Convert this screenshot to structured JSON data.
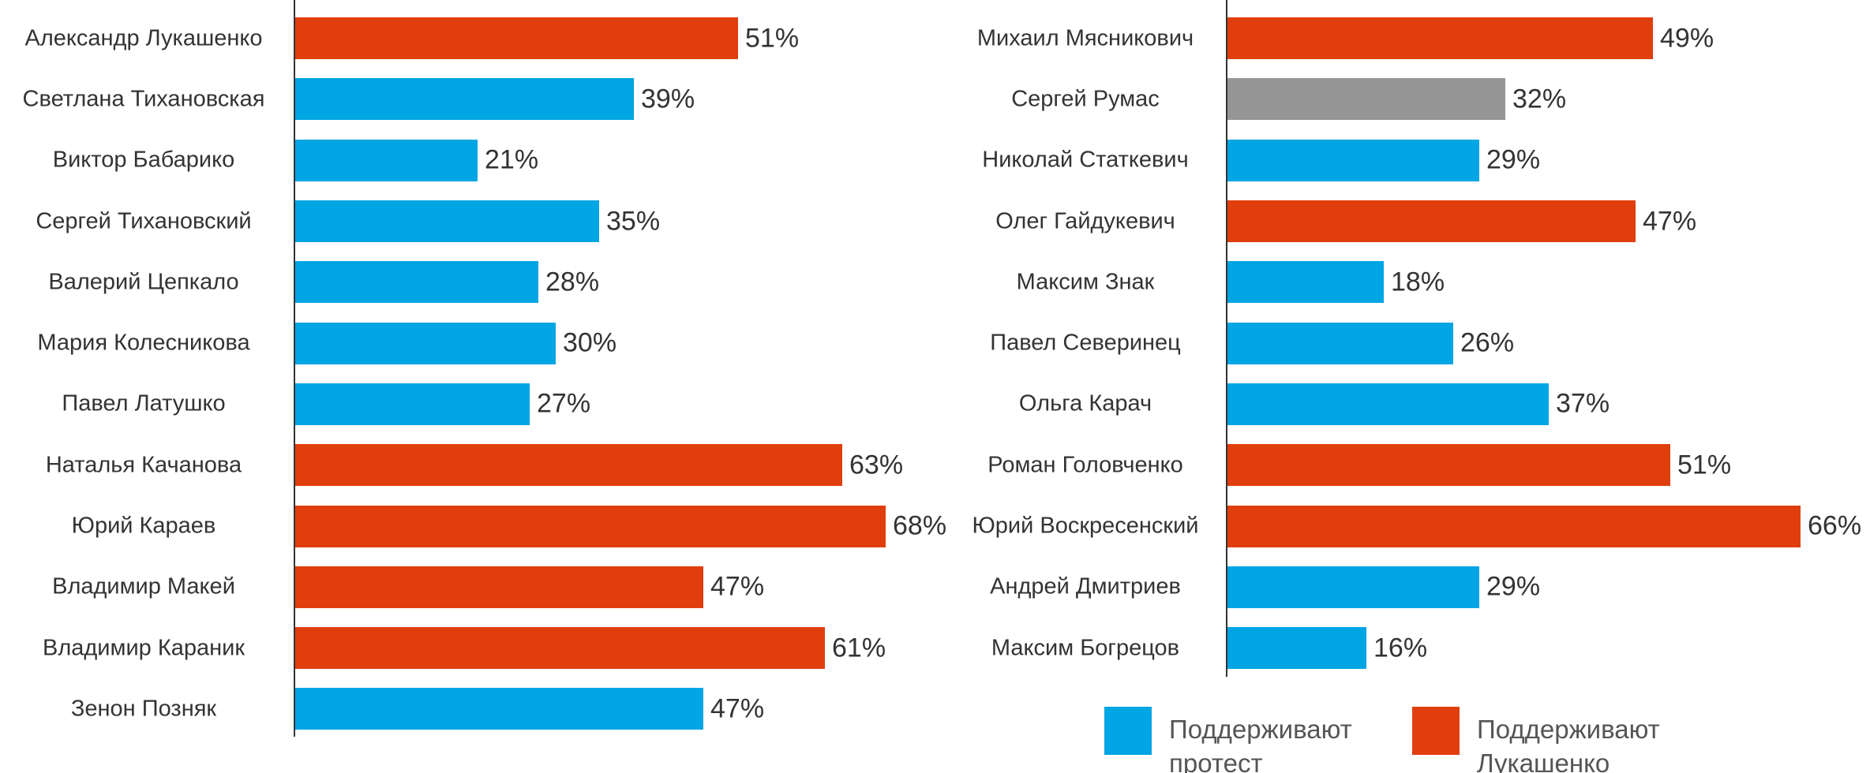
{
  "chart_data": [
    {
      "type": "bar",
      "orientation": "horizontal",
      "xlim": [
        0,
        100
      ],
      "categories": [
        "Александр Лукашенко",
        "Светлана Тихановская",
        "Виктор Бабарико",
        "Сергей Тихановский",
        "Валерий Цепкало",
        "Мария Колесникова",
        "Павел Латушко",
        "Наталья Качанова",
        "Юрий Караев",
        "Владимир Макей",
        "Владимир Караник",
        "Зенон Позняк"
      ],
      "values": [
        51,
        39,
        21,
        35,
        28,
        30,
        27,
        63,
        68,
        47,
        61,
        47
      ],
      "value_labels": [
        "51%",
        "39%",
        "21%",
        "35%",
        "28%",
        "30%",
        "27%",
        "63%",
        "68%",
        "47%",
        "61%",
        "47%"
      ],
      "colors": [
        "#e03e0c",
        "#00a5e3",
        "#00a5e3",
        "#00a5e3",
        "#00a5e3",
        "#00a5e3",
        "#00a5e3",
        "#e03e0c",
        "#e03e0c",
        "#e03e0c",
        "#e03e0c",
        "#00a5e3"
      ]
    },
    {
      "type": "bar",
      "orientation": "horizontal",
      "xlim": [
        0,
        100
      ],
      "categories": [
        "Михаил Мясникович",
        "Сергей Румас",
        "Николай Статкевич",
        "Олег Гайдукевич",
        "Максим Знак",
        "Павел Северинец",
        "Ольга Карач",
        "Роман Головченко",
        "Юрий Воскресенский",
        "Андрей Дмитриев",
        "Максим Богрецов"
      ],
      "values": [
        49,
        32,
        29,
        47,
        18,
        26,
        37,
        51,
        66,
        29,
        16
      ],
      "value_labels": [
        "49%",
        "32%",
        "29%",
        "47%",
        "18%",
        "26%",
        "37%",
        "51%",
        "66%",
        "29%",
        "16%"
      ],
      "colors": [
        "#e03e0c",
        "#959595",
        "#00a5e3",
        "#e03e0c",
        "#00a5e3",
        "#00a5e3",
        "#00a5e3",
        "#e03e0c",
        "#e03e0c",
        "#00a5e3",
        "#00a5e3"
      ]
    }
  ],
  "legend": [
    {
      "label": "Поддерживают протест",
      "color": "#00a5e3"
    },
    {
      "label": "Поддерживают Лукашенко",
      "color": "#e03e0c"
    }
  ]
}
